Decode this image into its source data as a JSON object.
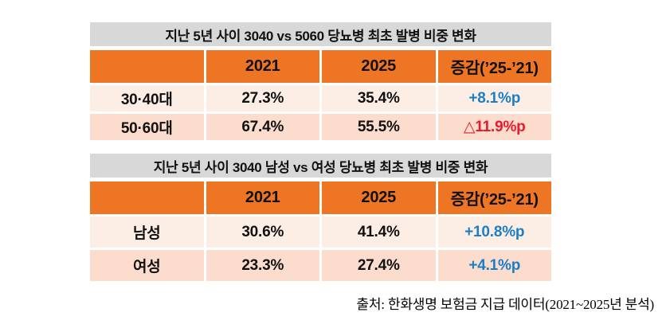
{
  "colors": {
    "header_bg": "#ee7524",
    "title_bar_bg": "#d8d8d8",
    "row_light_bg": "#fdeee5",
    "row_shaded_bg": "#fbdccd",
    "increase_text": "#1b7fc7",
    "decrease_text": "#e81a2c",
    "body_text": "#111111"
  },
  "tables": [
    {
      "title": "지난 5년 사이 3040 vs 5060 당뇨병 최초 발병 비중 변화",
      "columns": [
        "",
        "2021",
        "2025",
        "증감(’25-’21)"
      ],
      "rows": [
        {
          "label": "30·40대",
          "y2021": "27.3%",
          "y2025": "35.4%",
          "change": "+8.1%p",
          "change_color": "#1b7fc7",
          "change_direction": "increase"
        },
        {
          "label": "50·60대",
          "y2021": "67.4%",
          "y2025": "55.5%",
          "change": "△11.9%p",
          "change_color": "#e81a2c",
          "change_direction": "decrease"
        }
      ]
    },
    {
      "title": "지난 5년 사이 3040 남성 vs 여성 당뇨병 최초 발병 비중 변화",
      "columns": [
        "",
        "2021",
        "2025",
        "증감(’25-’21)"
      ],
      "rows": [
        {
          "label": "남성",
          "y2021": "30.6%",
          "y2025": "41.4%",
          "change": "+10.8%p",
          "change_color": "#1b7fc7",
          "change_direction": "increase"
        },
        {
          "label": "여성",
          "y2021": "23.3%",
          "y2025": "27.4%",
          "change": "+4.1%p",
          "change_color": "#1b7fc7",
          "change_direction": "increase"
        }
      ]
    }
  ],
  "footer": {
    "source": "출처: 한화생명 보험금 지급 데이터(2021~2025년 분석)"
  },
  "chart_data": [
    {
      "type": "table",
      "title": "지난 5년 사이 3040 vs 5060 당뇨병 최초 발병 비중 변화",
      "columns": [
        "",
        "2021",
        "2025",
        "증감(’25-’21)"
      ],
      "rows": [
        [
          "30·40대",
          "27.3%",
          "35.4%",
          "+8.1%p"
        ],
        [
          "50·60대",
          "67.4%",
          "55.5%",
          "△11.9%p"
        ]
      ]
    },
    {
      "type": "table",
      "title": "지난 5년 사이 3040 남성 vs 여성 당뇨병 최초 발병 비중 변화",
      "columns": [
        "",
        "2021",
        "2025",
        "증감(’25-’21)"
      ],
      "rows": [
        [
          "남성",
          "30.6%",
          "41.4%",
          "+10.8%p"
        ],
        [
          "여성",
          "23.3%",
          "27.4%",
          "+4.1%p"
        ]
      ]
    }
  ]
}
